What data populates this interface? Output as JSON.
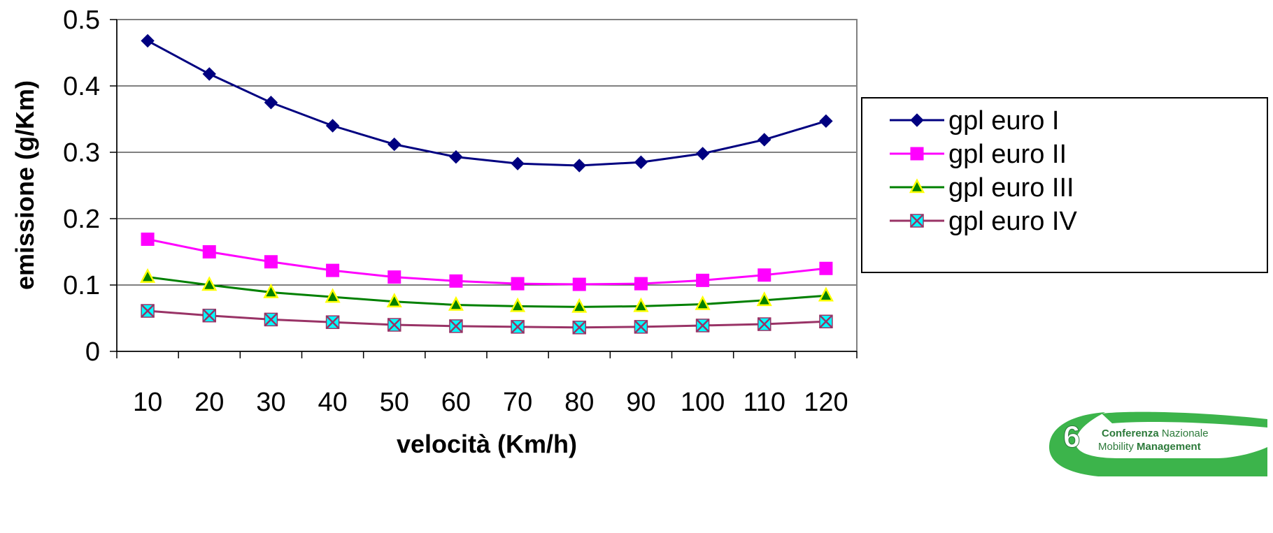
{
  "chart_data": {
    "type": "line",
    "xlabel": "velocità (Km/h)",
    "ylabel": "emissione (g/Km)",
    "categories": [
      "10",
      "20",
      "30",
      "40",
      "50",
      "60",
      "70",
      "80",
      "90",
      "100",
      "110",
      "120"
    ],
    "ylim": [
      0,
      0.5
    ],
    "yticks": [
      "0",
      "0.1",
      "0.2",
      "0.3",
      "0.4",
      "0.5"
    ],
    "grid": "horizontal",
    "legend_position": "right",
    "series": [
      {
        "name": "gpl euro I",
        "marker": "diamond",
        "line_color": "#000080",
        "marker_fill": "#000080",
        "marker_edge": "#000080",
        "values": [
          0.468,
          0.418,
          0.375,
          0.34,
          0.312,
          0.293,
          0.283,
          0.28,
          0.285,
          0.298,
          0.319,
          0.347
        ]
      },
      {
        "name": "gpl euro II",
        "marker": "square",
        "line_color": "#ff00ff",
        "marker_fill": "#ff00ff",
        "marker_edge": "#ff00ff",
        "values": [
          0.169,
          0.15,
          0.135,
          0.122,
          0.112,
          0.106,
          0.102,
          0.101,
          0.102,
          0.107,
          0.115,
          0.125
        ]
      },
      {
        "name": "gpl euro III",
        "marker": "triangle",
        "line_color": "#008000",
        "marker_fill": "#008000",
        "marker_edge": "#ffff00",
        "values": [
          0.112,
          0.1,
          0.089,
          0.082,
          0.075,
          0.07,
          0.068,
          0.067,
          0.068,
          0.071,
          0.077,
          0.084
        ]
      },
      {
        "name": "gpl euro IV",
        "marker": "x-square",
        "line_color": "#993366",
        "marker_fill": "#00ffff",
        "marker_edge": "#993366",
        "values": [
          0.061,
          0.054,
          0.048,
          0.044,
          0.04,
          0.038,
          0.037,
          0.036,
          0.037,
          0.039,
          0.041,
          0.045
        ]
      }
    ]
  },
  "logo": {
    "badge": "6",
    "line1_bold": "Conferenza",
    "line1_rest": " Nazionale",
    "line2_rest": "Mobility ",
    "line2_bold": "Management"
  },
  "colors": {
    "grid": "#000000",
    "axis": "#000000",
    "plot_border": "#808080",
    "logo_green": "#3cb44b"
  }
}
